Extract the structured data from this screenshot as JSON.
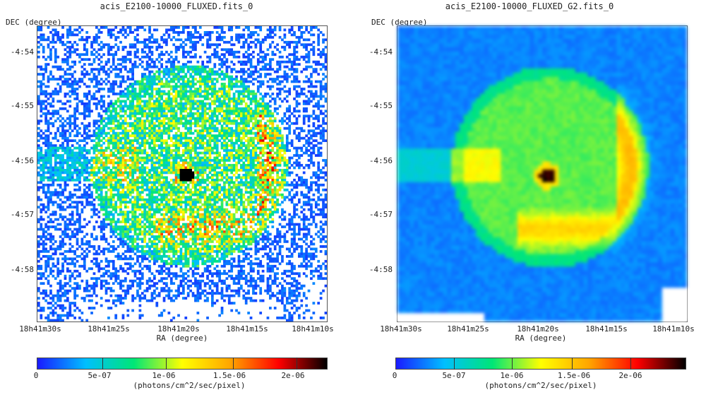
{
  "panels": [
    {
      "title": "acis_E2100-10000_FLUXED.fits_0",
      "y_axis_label": "DEC (degree)",
      "x_axis_label": "RA (degree)",
      "y_ticks": [
        "-4:54",
        "-4:55",
        "-4:56",
        "-4:57",
        "-4:58"
      ],
      "x_ticks": [
        "18h41m30s",
        "18h41m25s",
        "18h41m20s",
        "18h41m15s",
        "18h41m10s"
      ],
      "colorbar_ticks": [
        "0",
        "5e-07",
        "1e-06",
        "1.5e-06",
        "2e-06"
      ],
      "colorbar_unit": "(photons/cm^2/sec/pixel)",
      "style": "noisy"
    },
    {
      "title": "acis_E2100-10000_FLUXED_G2.fits_0",
      "y_axis_label": "DEC (degree)",
      "x_axis_label": "RA (degree)",
      "y_ticks": [
        "-4:54",
        "-4:55",
        "-4:56",
        "-4:57",
        "-4:58"
      ],
      "x_ticks": [
        "18h41m30s",
        "18h41m25s",
        "18h41m20s",
        "18h41m15s",
        "18h41m10s"
      ],
      "colorbar_ticks": [
        "0",
        "5e-07",
        "1e-06",
        "1.5e-06",
        "2e-06"
      ],
      "colorbar_unit": "(photons/cm^2/sec/pixel)",
      "style": "smoothed"
    }
  ],
  "colormap": [
    "#1a1aff",
    "#00bfff",
    "#00e676",
    "#ffff00",
    "#ffa500",
    "#ff0000",
    "#000000"
  ]
}
